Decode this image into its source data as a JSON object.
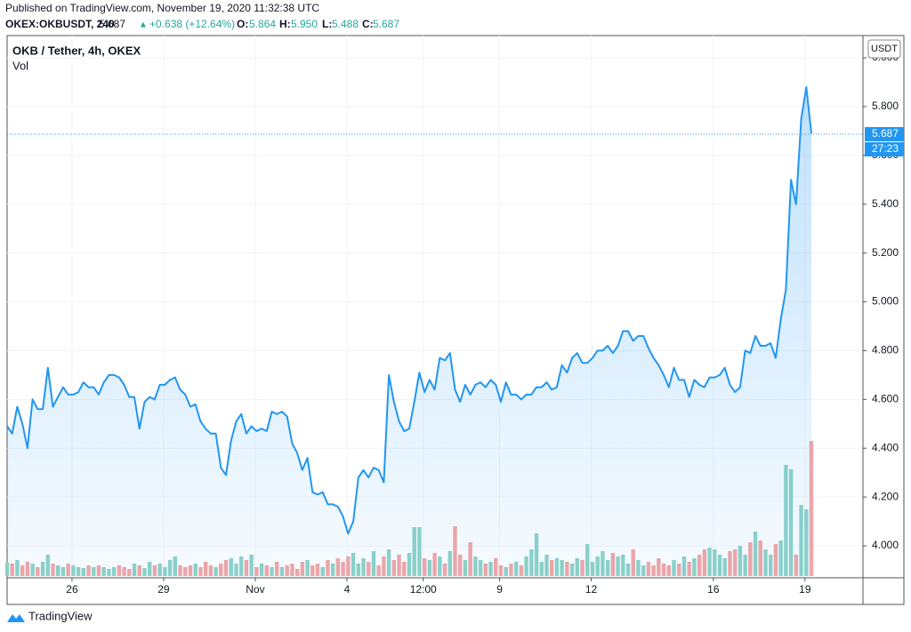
{
  "header": {
    "published": "Published on TradingView.com, November 19, 2020 11:32:38 UTC",
    "symbol": "OKEX:OKBUSDT, 240",
    "price": "5.687",
    "arrow": "▲",
    "change": "+0.638 (+12.64%)",
    "o_label": "O:",
    "o": "5.864",
    "h_label": "H:",
    "h": "5.950",
    "l_label": "L:",
    "l": "5.488",
    "c_label": "C:",
    "c": "5.687"
  },
  "footer": {
    "brand": "TradingView"
  },
  "chart_data": {
    "type": "area",
    "title": "OKB / Tether, 4h, OKEX",
    "currency": "USDT",
    "last_price": 5.687,
    "last_price_label": "5.687",
    "countdown": "27:23",
    "xlim": [
      0,
      158
    ],
    "xticks": [
      {
        "value": 12.75,
        "label": "26"
      },
      {
        "value": 30.75,
        "label": "29"
      },
      {
        "value": 48.75,
        "label": "Nov"
      },
      {
        "value": 66.75,
        "label": "4"
      },
      {
        "value": 81.75,
        "label": "12:00"
      },
      {
        "value": 96.75,
        "label": "9"
      },
      {
        "value": 114.75,
        "label": "12"
      },
      {
        "value": 138.75,
        "label": "16"
      },
      {
        "value": 156.75,
        "label": "19"
      }
    ],
    "ylim": [
      3.869,
      6.084
    ],
    "yticks": [
      {
        "value": 4,
        "label": "4.000"
      },
      {
        "value": 4.2,
        "label": "4.200"
      },
      {
        "value": 4.4,
        "label": "4.400"
      },
      {
        "value": 4.6,
        "label": "4.600"
      },
      {
        "value": 4.8,
        "label": "4.800"
      },
      {
        "value": 5,
        "label": "5.000"
      },
      {
        "value": 5.2,
        "label": "5.200"
      },
      {
        "value": 5.4,
        "label": "5.400"
      },
      {
        "value": 5.6,
        "label": "5.600"
      },
      {
        "value": 5.8,
        "label": "5.800"
      },
      {
        "value": 6,
        "label": "6.000"
      }
    ],
    "y2lim": [
      0,
      608
    ],
    "grid": true,
    "series": [
      {
        "name": "OKB / Tether",
        "color": "#2196f3",
        "values": [
          4.49,
          4.46,
          4.57,
          4.5,
          4.4,
          4.6,
          4.56,
          4.56,
          4.73,
          4.57,
          4.61,
          4.65,
          4.62,
          4.62,
          4.63,
          4.67,
          4.65,
          4.65,
          4.62,
          4.67,
          4.7,
          4.7,
          4.69,
          4.66,
          4.61,
          4.61,
          4.48,
          4.59,
          4.61,
          4.6,
          4.66,
          4.66,
          4.68,
          4.69,
          4.64,
          4.62,
          4.57,
          4.58,
          4.51,
          4.48,
          4.46,
          4.46,
          4.32,
          4.29,
          4.43,
          4.51,
          4.54,
          4.46,
          4.49,
          4.47,
          4.48,
          4.47,
          4.55,
          4.54,
          4.55,
          4.53,
          4.42,
          4.38,
          4.31,
          4.36,
          4.22,
          4.21,
          4.22,
          4.17,
          4.17,
          4.16,
          4.12,
          4.05,
          4.1,
          4.28,
          4.31,
          4.28,
          4.32,
          4.31,
          4.26,
          4.7,
          4.59,
          4.51,
          4.47,
          4.48,
          4.59,
          4.71,
          4.63,
          4.68,
          4.64,
          4.77,
          4.76,
          4.79,
          4.64,
          4.59,
          4.66,
          4.62,
          4.66,
          4.67,
          4.65,
          4.68,
          4.66,
          4.59,
          4.67,
          4.62,
          4.62,
          4.6,
          4.62,
          4.62,
          4.65,
          4.65,
          4.67,
          4.64,
          4.65,
          4.74,
          4.71,
          4.77,
          4.79,
          4.75,
          4.75,
          4.77,
          4.8,
          4.8,
          4.82,
          4.79,
          4.82,
          4.88,
          4.88,
          4.84,
          4.86,
          4.86,
          4.81,
          4.77,
          4.74,
          4.7,
          4.65,
          4.73,
          4.68,
          4.68,
          4.61,
          4.68,
          4.66,
          4.65,
          4.69,
          4.69,
          4.7,
          4.73,
          4.66,
          4.63,
          4.65,
          4.8,
          4.79,
          4.86,
          4.82,
          4.82,
          4.83,
          4.77,
          4.93,
          5.05,
          5.5,
          5.4,
          5.75,
          5.88,
          5.69
        ]
      },
      {
        "name": "Vol",
        "axis": "y2",
        "up_color": "#8fd3c8",
        "down_color": "#f4a6a6",
        "values": [
          15,
          14,
          18,
          12,
          16,
          14,
          10,
          16,
          24,
          14,
          12,
          10,
          14,
          12,
          10,
          9,
          12,
          10,
          12,
          10,
          8,
          10,
          12,
          10,
          8,
          14,
          12,
          9,
          16,
          12,
          14,
          10,
          18,
          22,
          12,
          10,
          12,
          14,
          10,
          16,
          12,
          10,
          14,
          18,
          20,
          14,
          22,
          18,
          24,
          10,
          14,
          12,
          10,
          16,
          10,
          12,
          14,
          8,
          16,
          18,
          12,
          14,
          10,
          18,
          14,
          20,
          16,
          22,
          26,
          14,
          20,
          16,
          28,
          12,
          22,
          30,
          18,
          24,
          16,
          26,
          55,
          55,
          20,
          18,
          26,
          22,
          14,
          28,
          56,
          24,
          18,
          38,
          22,
          18,
          14,
          16,
          20,
          12,
          10,
          14,
          16,
          12,
          22,
          30,
          48,
          16,
          24,
          18,
          20,
          18,
          16,
          14,
          20,
          18,
          36,
          16,
          22,
          28,
          18,
          26,
          22,
          24,
          14,
          30,
          18,
          12,
          16,
          12,
          20,
          14,
          12,
          18,
          14,
          22,
          16,
          20,
          24,
          30,
          32,
          30,
          24,
          20,
          28,
          30,
          34,
          24,
          38,
          50,
          40,
          30,
          24,
          36,
          40,
          125,
          120,
          24,
          80,
          75,
          152
        ]
      }
    ]
  }
}
